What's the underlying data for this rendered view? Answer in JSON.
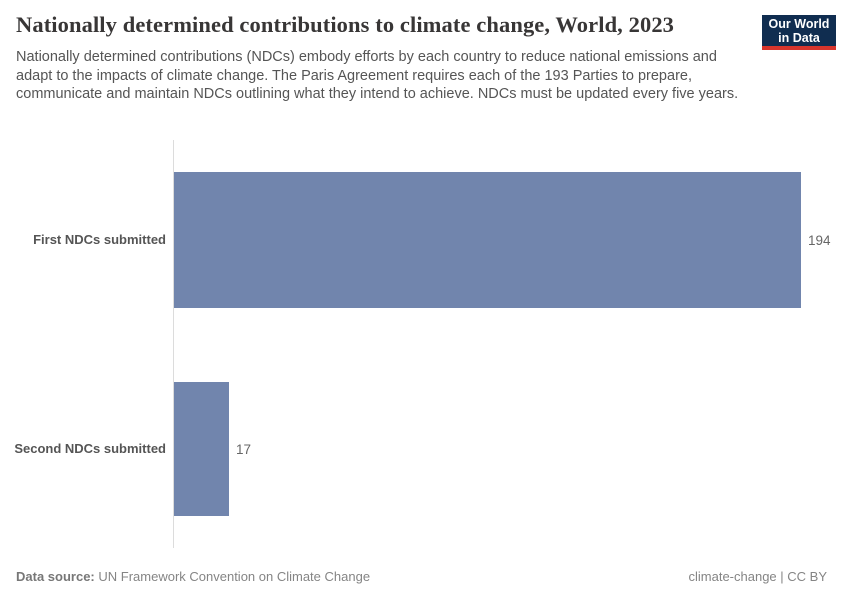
{
  "header": {
    "title": "Nationally determined contributions to climate change, World, 2023",
    "subtitle": "Nationally determined contributions (NDCs) embody efforts by each country to reduce national emissions and adapt to the impacts of climate change. The Paris Agreement requires each of the 193 Parties to prepare, communicate and maintain NDCs outlining what they intend to achieve. NDCs must be updated every five years.",
    "logo": {
      "line1": "Our World",
      "line2": "in Data",
      "bg_color": "#102d50",
      "accent_color": "#d8352c"
    }
  },
  "chart_data": {
    "type": "bar",
    "orientation": "horizontal",
    "categories": [
      "First NDCs submitted",
      "Second NDCs submitted"
    ],
    "values": [
      194,
      17
    ],
    "xlim": [
      0,
      194
    ],
    "bar_color": "#7185ad",
    "grid": false,
    "value_labels": [
      "194",
      "17"
    ],
    "title": "Nationally determined contributions to climate change, World, 2023",
    "xlabel": "",
    "ylabel": ""
  },
  "footer": {
    "source_label": "Data source:",
    "source_value": "UN Framework Convention on Climate Change",
    "license": "climate-change | CC BY"
  }
}
